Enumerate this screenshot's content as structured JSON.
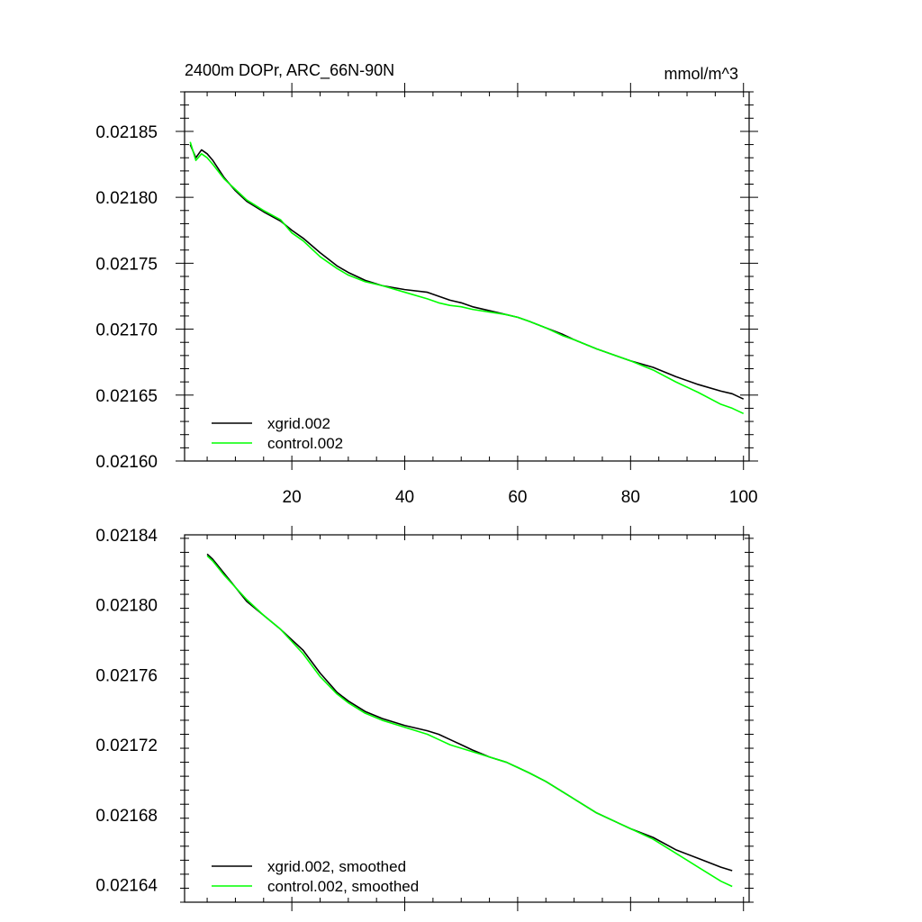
{
  "chart_data": [
    {
      "type": "line",
      "title": "2400m DOPr, ARC_66N-90N",
      "units": "mmol/m^3",
      "xlabel": "",
      "ylabel": "",
      "xlim": [
        1,
        101
      ],
      "ylim": [
        0.0216,
        0.02188
      ],
      "x_ticks": [
        20,
        40,
        60,
        80,
        100
      ],
      "x_tick_labels": [
        "20",
        "40",
        "60",
        "80",
        "100"
      ],
      "y_ticks": [
        0.0216,
        0.02165,
        0.0217,
        0.02175,
        0.0218,
        0.02185
      ],
      "y_tick_labels": [
        "0.02160",
        "0.02165",
        "0.02170",
        "0.02175",
        "0.02180",
        "0.02185"
      ],
      "legend_position": "bottom-left",
      "series": [
        {
          "name": "xgrid.002",
          "color": "#000000",
          "x": [
            2,
            3,
            4,
            5,
            6,
            8,
            10,
            12,
            15,
            18,
            20,
            22,
            25,
            28,
            30,
            33,
            36,
            40,
            44,
            46,
            48,
            50,
            52,
            55,
            58,
            60,
            62,
            65,
            68,
            70,
            74,
            78,
            80,
            84,
            88,
            92,
            96,
            98,
            100
          ],
          "values": [
            0.02184,
            0.02183,
            0.021836,
            0.021833,
            0.021828,
            0.021815,
            0.021805,
            0.021797,
            0.021789,
            0.021782,
            0.021775,
            0.021769,
            0.021758,
            0.021748,
            0.021743,
            0.021737,
            0.021733,
            0.02173,
            0.021728,
            0.021725,
            0.021722,
            0.02172,
            0.021717,
            0.021714,
            0.021711,
            0.021709,
            0.021706,
            0.021701,
            0.021696,
            0.021692,
            0.021685,
            0.021679,
            0.021676,
            0.021671,
            0.021664,
            0.021658,
            0.021653,
            0.021651,
            0.021647
          ]
        },
        {
          "name": "control.002",
          "color": "#00ff00",
          "x": [
            2,
            3,
            4,
            5,
            6,
            8,
            10,
            12,
            15,
            18,
            20,
            22,
            25,
            28,
            30,
            33,
            36,
            40,
            44,
            46,
            48,
            50,
            52,
            55,
            58,
            60,
            62,
            65,
            68,
            70,
            74,
            78,
            80,
            84,
            88,
            92,
            96,
            98,
            100
          ],
          "values": [
            0.021842,
            0.021828,
            0.021833,
            0.02183,
            0.021825,
            0.021814,
            0.021806,
            0.021798,
            0.02179,
            0.021783,
            0.021773,
            0.021767,
            0.021755,
            0.021746,
            0.021741,
            0.021736,
            0.021733,
            0.021728,
            0.021723,
            0.02172,
            0.021718,
            0.021717,
            0.021715,
            0.021713,
            0.021711,
            0.021709,
            0.021706,
            0.021701,
            0.021695,
            0.021692,
            0.021685,
            0.021679,
            0.021676,
            0.021669,
            0.02166,
            0.021652,
            0.021643,
            0.02164,
            0.021636
          ]
        }
      ]
    },
    {
      "type": "line",
      "title": "",
      "xlabel": "",
      "ylabel": "",
      "xlim": [
        1,
        101
      ],
      "ylim": [
        0.02163,
        0.02184
      ],
      "x_ticks": [
        20,
        40,
        60,
        80,
        100
      ],
      "y_ticks": [
        0.02164,
        0.02168,
        0.02172,
        0.02176,
        0.0218,
        0.02184
      ],
      "y_tick_labels": [
        "0.02164",
        "0.02168",
        "0.02172",
        "0.02176",
        "0.02180",
        "0.02184"
      ],
      "legend_position": "bottom-left",
      "series": [
        {
          "name": "xgrid.002, smoothed",
          "color": "#000000",
          "x": [
            5,
            6,
            8,
            10,
            12,
            15,
            18,
            20,
            22,
            25,
            28,
            30,
            33,
            36,
            40,
            44,
            46,
            48,
            50,
            52,
            55,
            58,
            60,
            62,
            65,
            68,
            70,
            74,
            78,
            80,
            84,
            88,
            92,
            96,
            98
          ],
          "values": [
            0.021829,
            0.021826,
            0.021818,
            0.02181,
            0.021802,
            0.021794,
            0.021786,
            0.02178,
            0.021774,
            0.021761,
            0.02175,
            0.021745,
            0.021739,
            0.021735,
            0.021731,
            0.021728,
            0.021726,
            0.021723,
            0.02172,
            0.021717,
            0.021713,
            0.02171,
            0.021707,
            0.021704,
            0.021699,
            0.021693,
            0.021689,
            0.021681,
            0.021675,
            0.021672,
            0.021667,
            0.02166,
            0.021655,
            0.02165,
            0.021648
          ]
        },
        {
          "name": "control.002, smoothed",
          "color": "#00ff00",
          "x": [
            5,
            6,
            8,
            10,
            12,
            15,
            18,
            20,
            22,
            25,
            28,
            30,
            33,
            36,
            40,
            44,
            46,
            48,
            50,
            52,
            55,
            58,
            60,
            62,
            65,
            68,
            70,
            74,
            78,
            80,
            84,
            88,
            92,
            96,
            98
          ],
          "values": [
            0.021828,
            0.021825,
            0.021817,
            0.02181,
            0.021803,
            0.021794,
            0.021786,
            0.021779,
            0.021772,
            0.021759,
            0.021749,
            0.021744,
            0.021738,
            0.021734,
            0.02173,
            0.021726,
            0.021723,
            0.02172,
            0.021718,
            0.021716,
            0.021713,
            0.02171,
            0.021707,
            0.021704,
            0.021699,
            0.021693,
            0.021689,
            0.021681,
            0.021675,
            0.021672,
            0.021666,
            0.021658,
            0.02165,
            0.021642,
            0.021639
          ]
        }
      ]
    }
  ]
}
